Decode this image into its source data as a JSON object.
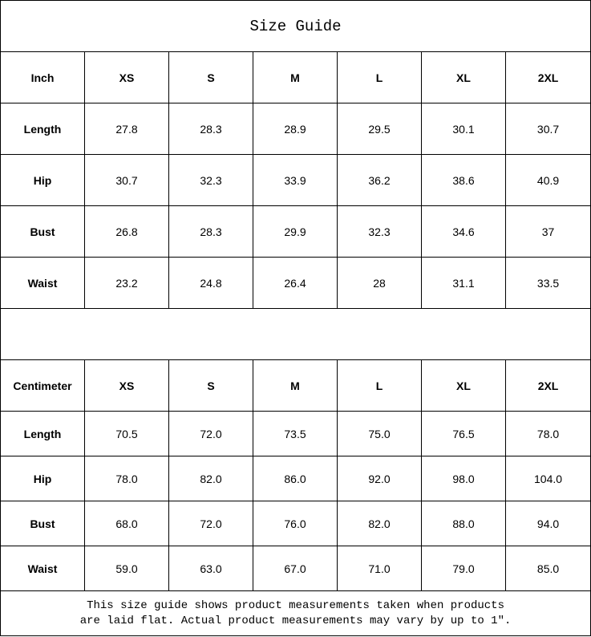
{
  "title": "Size Guide",
  "sizes": [
    "XS",
    "S",
    "M",
    "L",
    "XL",
    "2XL"
  ],
  "inch": {
    "unit_label": "Inch",
    "rows": [
      {
        "label": "Length",
        "values": [
          "27.8",
          "28.3",
          "28.9",
          "29.5",
          "30.1",
          "30.7"
        ]
      },
      {
        "label": "Hip",
        "values": [
          "30.7",
          "32.3",
          "33.9",
          "36.2",
          "38.6",
          "40.9"
        ]
      },
      {
        "label": "Bust",
        "values": [
          "26.8",
          "28.3",
          "29.9",
          "32.3",
          "34.6",
          "37"
        ]
      },
      {
        "label": "Waist",
        "values": [
          "23.2",
          "24.8",
          "26.4",
          "28",
          "31.1",
          "33.5"
        ]
      }
    ]
  },
  "centimeter": {
    "unit_label": "Centimeter",
    "rows": [
      {
        "label": "Length",
        "values": [
          "70.5",
          "72.0",
          "73.5",
          "75.0",
          "76.5",
          "78.0"
        ]
      },
      {
        "label": "Hip",
        "values": [
          "78.0",
          "82.0",
          "86.0",
          "92.0",
          "98.0",
          "104.0"
        ]
      },
      {
        "label": "Bust",
        "values": [
          "68.0",
          "72.0",
          "76.0",
          "82.0",
          "88.0",
          "94.0"
        ]
      },
      {
        "label": "Waist",
        "values": [
          "59.0",
          "63.0",
          "67.0",
          "71.0",
          "79.0",
          "85.0"
        ]
      }
    ]
  },
  "footer": {
    "line1": "This size guide shows product measurements taken when products",
    "line2": "are laid flat. Actual product measurements may vary by up to 1″."
  }
}
